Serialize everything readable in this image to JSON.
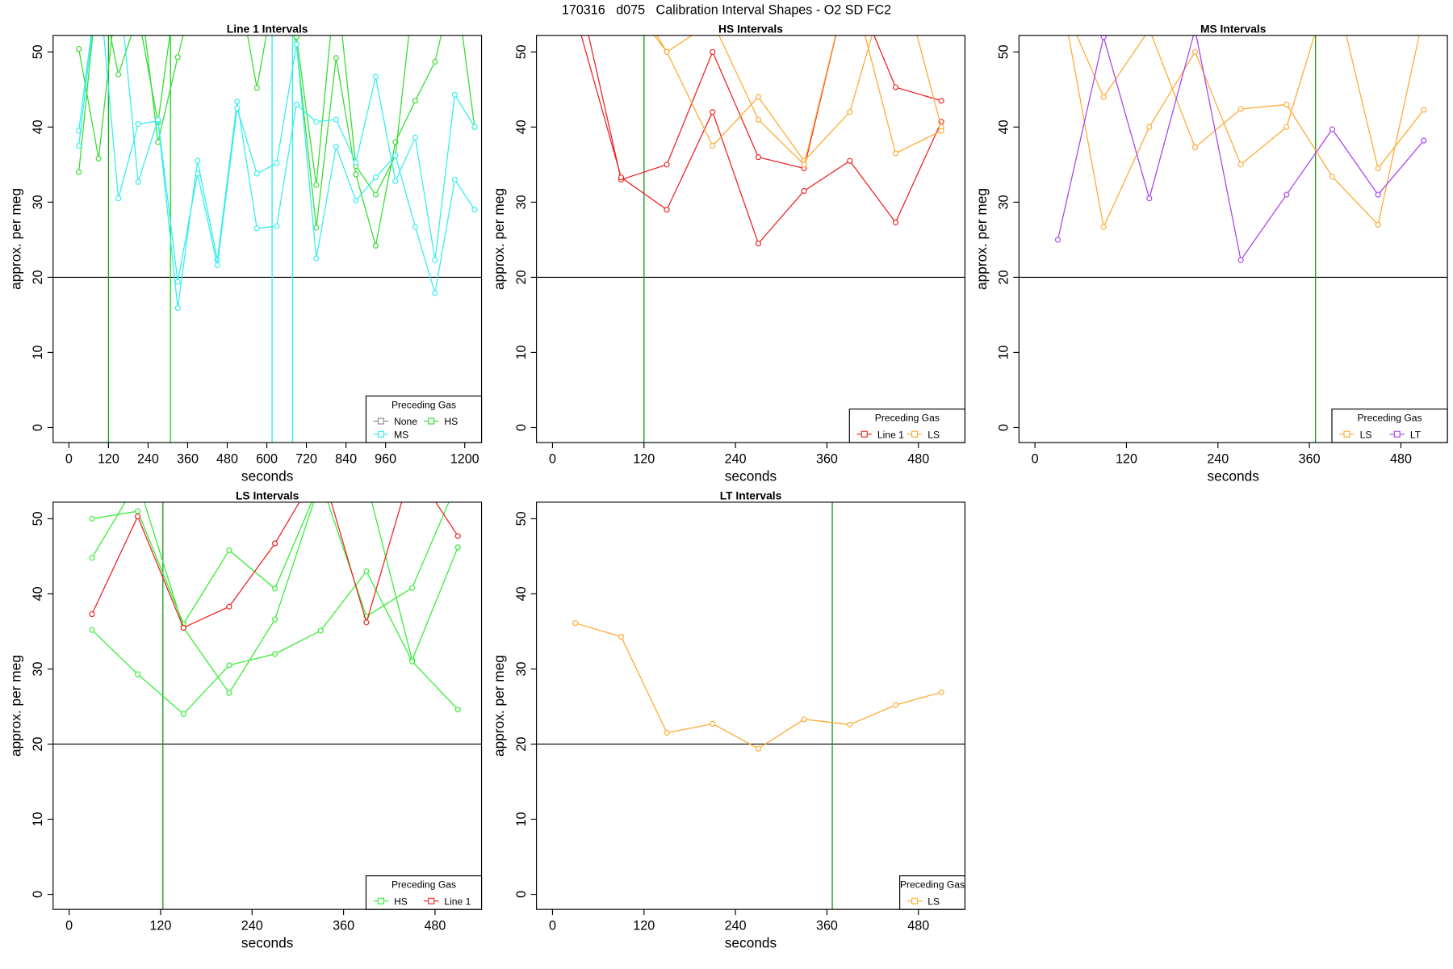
{
  "title": "170316   d075   Calibration Interval Shapes - O2 SD FC2",
  "chart_data": [
    {
      "type": "line",
      "title": "Line 1 Intervals",
      "xlabel": "seconds",
      "ylabel": "approx. per meg",
      "x": [
        30,
        90,
        150,
        210,
        270,
        330,
        390,
        450,
        510,
        570,
        630,
        690,
        750,
        810,
        870,
        930,
        990,
        1050,
        1110,
        1170,
        1230
      ],
      "xlim": [
        -48,
        1251
      ],
      "ylim": [
        -2,
        52.2
      ],
      "xticks": [
        0,
        120,
        240,
        360,
        480,
        600,
        720,
        840,
        960,
        1200
      ],
      "yticks": [
        0,
        10,
        20,
        30,
        40,
        50
      ],
      "hline": 20,
      "vlines": [
        {
          "value": 120,
          "color": "#1f9e1f"
        },
        {
          "value": 308,
          "color": "#22dd22"
        },
        {
          "value": 616,
          "color": "#33eeee"
        },
        {
          "value": 678,
          "color": "#33eeee"
        }
      ],
      "legend": {
        "title": "Preceding Gas",
        "position": "bottomright"
      },
      "series": [
        {
          "name": "None",
          "color": "#888888",
          "lines": []
        },
        {
          "name": "HS",
          "color": "#33dd33",
          "lines": [
            [
              50.4,
              35.8,
              60,
              60,
              38,
              49.3,
              60,
              60,
              60,
              45.2,
              60,
              51,
              26.6,
              49.2,
              33.7,
              24.2,
              38,
              43.5,
              48.7,
              60,
              40
            ],
            [
              34,
              60,
              47,
              55,
              40.6,
              60,
              60,
              60,
              60,
              60,
              60,
              52,
              32.3,
              60,
              34.8,
              31,
              36.2,
              60,
              60,
              55,
              60
            ]
          ]
        },
        {
          "name": "MS",
          "color": "#33eeee",
          "lines": [
            [
              39.5,
              60,
              30.5,
              40.4,
              40.8,
              15.9,
              35.5,
              22.3,
              43.4,
              26.5,
              26.8,
              43,
              40.7,
              41,
              35.3,
              46.7,
              32.8,
              38.6,
              22.3,
              44.3,
              40
            ],
            [
              37.5,
              60,
              60,
              32.7,
              41,
              19.4,
              33.8,
              21.6,
              42.5,
              33.8,
              35.2,
              51,
              22.5,
              37.4,
              30.2,
              33.3,
              36.2,
              26.7,
              17.9,
              33,
              29
            ]
          ]
        }
      ]
    },
    {
      "type": "line",
      "title": "HS Intervals",
      "xlabel": "seconds",
      "ylabel": "approx. per meg",
      "x": [
        30,
        90,
        150,
        210,
        270,
        330,
        390,
        450,
        510
      ],
      "xlim": [
        -21,
        541
      ],
      "ylim": [
        -2,
        52.2
      ],
      "xticks": [
        0,
        120,
        240,
        360,
        480
      ],
      "yticks": [
        0,
        10,
        20,
        30,
        40,
        50
      ],
      "hline": 20,
      "vlines": [
        {
          "value": 120,
          "color": "#1f9e1f"
        }
      ],
      "legend": {
        "title": "Preceding Gas",
        "position": "bottomright"
      },
      "series": [
        {
          "name": "Line 1",
          "color": "#ee2222",
          "lines": [
            [
              60,
              33,
              35,
              50,
              36,
              34.5,
              60,
              45.3,
              43.5
            ],
            [
              55,
              33.3,
              29,
              42,
              24.5,
              31.5,
              35.5,
              27.3,
              40.7
            ]
          ]
        },
        {
          "name": "LS",
          "color": "#ffaa33",
          "lines": [
            [
              60,
              58,
              50,
              37.5,
              44,
              35.5,
              42,
              63,
              40
            ],
            [
              62,
              60,
              50,
              54,
              41,
              35,
              60,
              36.5,
              39.5
            ]
          ]
        }
      ]
    },
    {
      "type": "line",
      "title": "MS Intervals",
      "xlabel": "seconds",
      "ylabel": "approx. per meg",
      "x": [
        30,
        90,
        150,
        210,
        270,
        330,
        390,
        450,
        510
      ],
      "xlim": [
        -21,
        541
      ],
      "ylim": [
        -2,
        52.2
      ],
      "xticks": [
        0,
        120,
        240,
        360,
        480
      ],
      "yticks": [
        0,
        10,
        20,
        30,
        40,
        50
      ],
      "hline": 20,
      "vlines": [
        {
          "value": 368,
          "color": "#1f9e1f"
        }
      ],
      "legend": {
        "title": "Preceding Gas",
        "position": "bottomright"
      },
      "series": [
        {
          "name": "LS",
          "color": "#ffaa33",
          "lines": [
            [
              60,
              26.7,
              40,
              50,
              35,
              40,
              60,
              34.5,
              42.3
            ],
            [
              58,
              44,
              53,
              37.3,
              42.4,
              43,
              33.4,
              27,
              55
            ]
          ]
        },
        {
          "name": "LT",
          "color": "#aa44ee",
          "lines": [
            [
              25,
              52,
              30.5,
              53,
              22.3,
              31,
              39.7,
              31,
              38.2
            ]
          ]
        }
      ]
    },
    {
      "type": "line",
      "title": "LS Intervals",
      "xlabel": "seconds",
      "ylabel": "approx. per meg",
      "x": [
        30,
        90,
        150,
        210,
        270,
        330,
        390,
        450,
        510
      ],
      "xlim": [
        -21,
        541
      ],
      "ylim": [
        -2,
        52.2
      ],
      "xticks": [
        0,
        120,
        240,
        360,
        480
      ],
      "yticks": [
        0,
        10,
        20,
        30,
        40,
        50
      ],
      "hline": 20,
      "vlines": [
        {
          "value": 123,
          "color": "#1f9e1f"
        }
      ],
      "legend": {
        "title": "Preceding Gas",
        "position": "bottomright"
      },
      "series": [
        {
          "name": "HS",
          "color": "#33ee33",
          "lines": [
            [
              50,
              51,
              36,
              45.8,
              40.7,
              55,
              55,
              31.2,
              46.2
            ],
            [
              35.2,
              29.3,
              24,
              30.5,
              32,
              35.1,
              43,
              31,
              24.6
            ],
            [
              44.8,
              55,
              35.5,
              26.8,
              36.6,
              55,
              37,
              40.8,
              55
            ]
          ]
        },
        {
          "name": "Line 1",
          "color": "#ee2222",
          "lines": [
            [
              37.3,
              50.3,
              35.5,
              38.3,
              46.7,
              57,
              36.2,
              57,
              47.7
            ]
          ]
        }
      ]
    },
    {
      "type": "line",
      "title": "LT Intervals",
      "xlabel": "seconds",
      "ylabel": "approx. per meg",
      "x": [
        30,
        90,
        150,
        210,
        270,
        330,
        390,
        450,
        510
      ],
      "xlim": [
        -21,
        541
      ],
      "ylim": [
        -2,
        52.2
      ],
      "xticks": [
        0,
        120,
        240,
        360,
        480
      ],
      "yticks": [
        0,
        10,
        20,
        30,
        40,
        50
      ],
      "hline": 20,
      "vlines": [
        {
          "value": 367,
          "color": "#1f9e1f"
        }
      ],
      "legend": {
        "title": "Preceding Gas",
        "position": "bottomright"
      },
      "series": [
        {
          "name": "LS",
          "color": "#ffaa33",
          "lines": [
            [
              36.1,
              34.3,
              21.5,
              22.7,
              19.4,
              23.3,
              22.6,
              25.2,
              26.9
            ]
          ]
        }
      ]
    }
  ]
}
